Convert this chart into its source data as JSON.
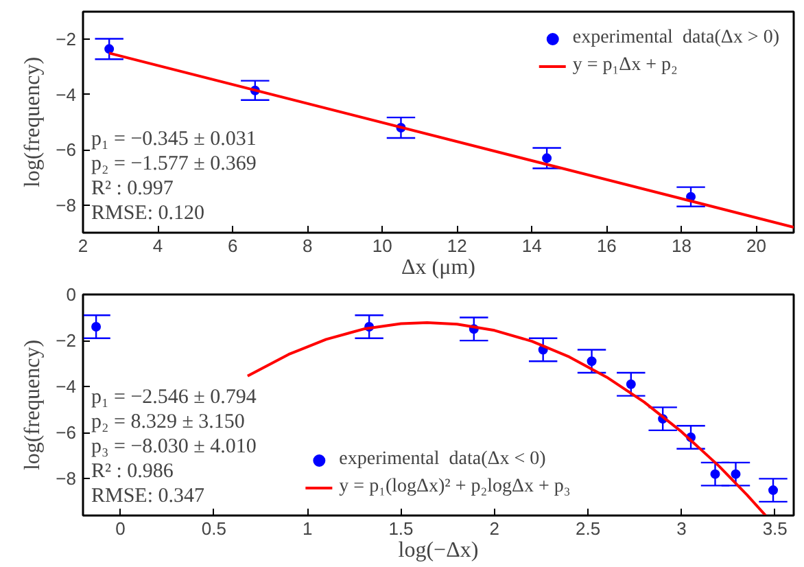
{
  "chart_data": [
    {
      "type": "scatter",
      "xlabel": "Δx (μm)",
      "ylabel": "log(frequency)",
      "xlim": [
        2,
        21
      ],
      "ylim": [
        -9,
        -1
      ],
      "xticks": [
        2,
        4,
        6,
        8,
        10,
        12,
        14,
        16,
        18,
        20
      ],
      "yticks": [
        -8,
        -6,
        -4,
        -2
      ],
      "legend": "top right",
      "grid": false,
      "annotations": [
        "p₁ = −0.345 ± 0.031",
        "p₂ = −1.577 ± 0.369",
        "R² : 0.997",
        "RMSE: 0.120"
      ],
      "series": [
        {
          "name": "experimental  data(Δx > 0)",
          "marker": "circle",
          "color": "#0000ff",
          "x": [
            2.7,
            6.6,
            10.5,
            14.4,
            18.25
          ],
          "values": [
            -2.35,
            -3.85,
            -5.2,
            -6.3,
            -7.7
          ],
          "errors": [
            0.37,
            0.35,
            0.37,
            0.37,
            0.35
          ]
        },
        {
          "name": "y = p₁Δx + p₂",
          "type": "line",
          "color": "#ff0000",
          "x": [
            2.7,
            21
          ],
          "values": [
            -2.5,
            -8.8
          ]
        }
      ]
    },
    {
      "type": "scatter",
      "xlabel": "log(−Δx)",
      "ylabel": "log(frequency)",
      "xlim": [
        -0.2,
        3.6
      ],
      "ylim": [
        -9.6,
        0
      ],
      "xticks": [
        0,
        0.5,
        1,
        1.5,
        2,
        2.5,
        3,
        3.5
      ],
      "yticks": [
        -8,
        -6,
        -4,
        -2,
        0
      ],
      "legend": "bottom",
      "grid": false,
      "annotations": [
        "p₁ = −2.546 ± 0.794",
        "p₂ = 8.329 ± 3.150",
        "p₃ = −8.030 ± 4.010",
        "R² : 0.986",
        "RMSE: 0.347"
      ],
      "series": [
        {
          "name": "experimental  data(Δx < 0)",
          "marker": "circle",
          "color": "#0000ff",
          "x": [
            -0.13,
            1.33,
            1.89,
            2.26,
            2.52,
            2.73,
            2.9,
            3.05,
            3.18,
            3.29,
            3.49
          ],
          "values": [
            -1.4,
            -1.4,
            -1.5,
            -2.4,
            -2.9,
            -3.9,
            -5.4,
            -6.2,
            -7.8,
            -7.8,
            -8.5
          ],
          "errors": [
            0.5,
            0.5,
            0.5,
            0.5,
            0.5,
            0.5,
            0.5,
            0.5,
            0.5,
            0.5,
            0.5
          ]
        },
        {
          "name": "y = p₁(logΔx)² + p₂logΔx + p₃",
          "type": "line",
          "color": "#ff0000",
          "x": [
            0.68,
            0.9,
            1.1,
            1.3,
            1.5,
            1.64,
            1.8,
            2.0,
            2.2,
            2.4,
            2.6,
            2.8,
            3.0,
            3.2,
            3.35,
            3.45
          ],
          "values": [
            -3.54,
            -2.6,
            -1.95,
            -1.5,
            -1.27,
            -1.22,
            -1.29,
            -1.56,
            -2.03,
            -2.71,
            -3.59,
            -4.67,
            -5.96,
            -7.45,
            -8.7,
            -9.6
          ]
        }
      ]
    }
  ]
}
